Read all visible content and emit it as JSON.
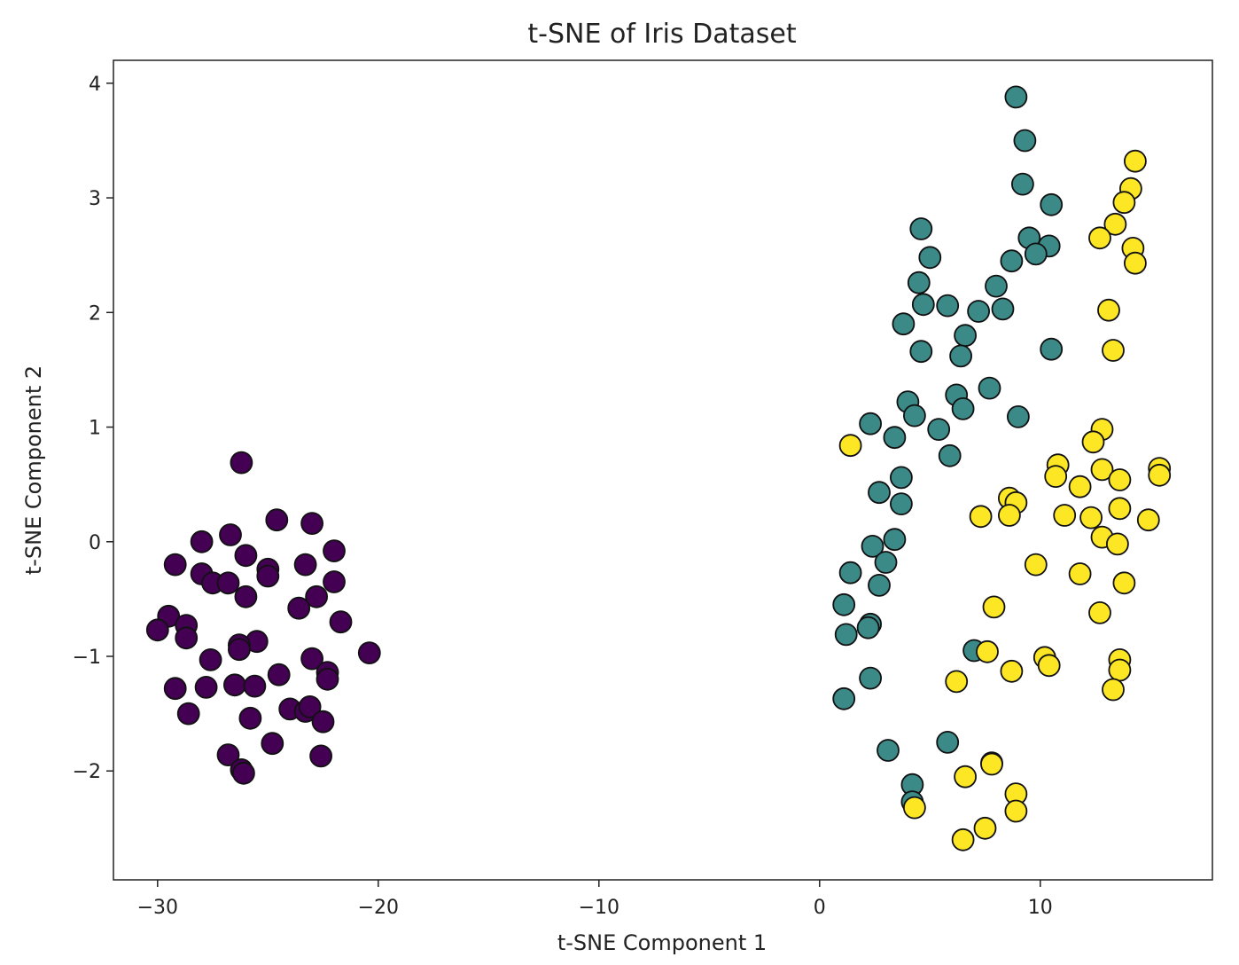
{
  "chart_data": {
    "type": "scatter",
    "title": "t-SNE of Iris Dataset",
    "xlabel": "t-SNE Component 1",
    "ylabel": "t-SNE Component 2",
    "xlim": [
      -32.0,
      17.8
    ],
    "ylim": [
      -2.95,
      4.2
    ],
    "xticks": [
      -30,
      -20,
      -10,
      0,
      10
    ],
    "xtick_labels": [
      "−30",
      "−20",
      "−10",
      "0",
      "10"
    ],
    "yticks": [
      -2,
      -1,
      0,
      1,
      2,
      3,
      4
    ],
    "ytick_labels": [
      "−2",
      "−1",
      "0",
      "1",
      "2",
      "3",
      "4"
    ],
    "grid": false,
    "legend": "none",
    "series": [
      {
        "color": "#440154",
        "points": [
          [
            -26.2,
            0.69
          ],
          [
            -24.6,
            0.19
          ],
          [
            -23.0,
            0.16
          ],
          [
            -28.0,
            0.0
          ],
          [
            -26.7,
            0.06
          ],
          [
            -26.0,
            -0.12
          ],
          [
            -22.0,
            -0.08
          ],
          [
            -29.2,
            -0.2
          ],
          [
            -23.3,
            -0.2
          ],
          [
            -25.0,
            -0.24
          ],
          [
            -28.0,
            -0.28
          ],
          [
            -27.5,
            -0.36
          ],
          [
            -26.8,
            -0.36
          ],
          [
            -25.0,
            -0.3
          ],
          [
            -22.0,
            -0.35
          ],
          [
            -22.8,
            -0.48
          ],
          [
            -26.0,
            -0.48
          ],
          [
            -23.6,
            -0.58
          ],
          [
            -29.5,
            -0.65
          ],
          [
            -28.7,
            -0.73
          ],
          [
            -30.0,
            -0.77
          ],
          [
            -21.7,
            -0.7
          ],
          [
            -28.7,
            -0.84
          ],
          [
            -25.5,
            -0.87
          ],
          [
            -26.3,
            -0.9
          ],
          [
            -26.3,
            -0.94
          ],
          [
            -20.4,
            -0.97
          ],
          [
            -27.6,
            -1.03
          ],
          [
            -23.0,
            -1.02
          ],
          [
            -24.5,
            -1.16
          ],
          [
            -22.3,
            -1.14
          ],
          [
            -22.3,
            -1.2
          ],
          [
            -29.2,
            -1.28
          ],
          [
            -27.8,
            -1.27
          ],
          [
            -26.5,
            -1.25
          ],
          [
            -25.6,
            -1.26
          ],
          [
            -24.0,
            -1.46
          ],
          [
            -23.3,
            -1.48
          ],
          [
            -23.1,
            -1.44
          ],
          [
            -28.6,
            -1.5
          ],
          [
            -25.8,
            -1.54
          ],
          [
            -22.5,
            -1.57
          ],
          [
            -24.8,
            -1.76
          ],
          [
            -26.8,
            -1.86
          ],
          [
            -22.6,
            -1.87
          ],
          [
            -26.2,
            -1.99
          ],
          [
            -26.1,
            -2.02
          ]
        ]
      },
      {
        "color": "#3b8a88",
        "points": [
          [
            8.9,
            3.88
          ],
          [
            9.3,
            3.5
          ],
          [
            9.2,
            3.12
          ],
          [
            10.5,
            2.94
          ],
          [
            4.6,
            2.73
          ],
          [
            9.5,
            2.65
          ],
          [
            10.4,
            2.58
          ],
          [
            9.8,
            2.51
          ],
          [
            5.0,
            2.48
          ],
          [
            8.7,
            2.45
          ],
          [
            4.5,
            2.26
          ],
          [
            8.0,
            2.23
          ],
          [
            4.7,
            2.07
          ],
          [
            5.8,
            2.06
          ],
          [
            7.2,
            2.01
          ],
          [
            8.3,
            2.03
          ],
          [
            3.8,
            1.9
          ],
          [
            6.6,
            1.8
          ],
          [
            4.6,
            1.66
          ],
          [
            6.4,
            1.62
          ],
          [
            10.5,
            1.68
          ],
          [
            7.7,
            1.34
          ],
          [
            6.2,
            1.28
          ],
          [
            4.0,
            1.22
          ],
          [
            9.0,
            1.09
          ],
          [
            4.3,
            1.1
          ],
          [
            6.5,
            1.16
          ],
          [
            2.3,
            1.03
          ],
          [
            5.4,
            0.98
          ],
          [
            3.4,
            0.91
          ],
          [
            5.9,
            0.75
          ],
          [
            3.7,
            0.56
          ],
          [
            2.7,
            0.43
          ],
          [
            3.7,
            0.33
          ],
          [
            3.4,
            0.02
          ],
          [
            2.4,
            -0.04
          ],
          [
            3.0,
            -0.18
          ],
          [
            1.4,
            -0.27
          ],
          [
            2.7,
            -0.38
          ],
          [
            1.1,
            -0.55
          ],
          [
            2.3,
            -0.72
          ],
          [
            2.2,
            -0.75
          ],
          [
            1.2,
            -0.81
          ],
          [
            7.0,
            -0.95
          ],
          [
            2.3,
            -1.19
          ],
          [
            1.1,
            -1.37
          ],
          [
            5.8,
            -1.75
          ],
          [
            3.1,
            -1.82
          ],
          [
            4.2,
            -2.12
          ],
          [
            4.2,
            -2.27
          ]
        ]
      },
      {
        "color": "#fde725",
        "points": [
          [
            14.3,
            3.32
          ],
          [
            14.1,
            3.08
          ],
          [
            13.8,
            2.96
          ],
          [
            13.4,
            2.77
          ],
          [
            12.7,
            2.65
          ],
          [
            14.2,
            2.56
          ],
          [
            14.3,
            2.43
          ],
          [
            13.1,
            2.02
          ],
          [
            13.3,
            1.67
          ],
          [
            12.8,
            0.98
          ],
          [
            12.4,
            0.87
          ],
          [
            1.4,
            0.84
          ],
          [
            10.8,
            0.67
          ],
          [
            15.4,
            0.64
          ],
          [
            12.8,
            0.63
          ],
          [
            10.7,
            0.57
          ],
          [
            15.4,
            0.58
          ],
          [
            13.6,
            0.54
          ],
          [
            11.8,
            0.48
          ],
          [
            8.6,
            0.38
          ],
          [
            8.9,
            0.34
          ],
          [
            13.6,
            0.29
          ],
          [
            11.1,
            0.23
          ],
          [
            12.3,
            0.21
          ],
          [
            7.3,
            0.22
          ],
          [
            8.6,
            0.23
          ],
          [
            14.9,
            0.19
          ],
          [
            12.8,
            0.04
          ],
          [
            13.5,
            -0.02
          ],
          [
            9.8,
            -0.2
          ],
          [
            11.8,
            -0.28
          ],
          [
            13.8,
            -0.36
          ],
          [
            7.9,
            -0.57
          ],
          [
            12.7,
            -0.62
          ],
          [
            7.6,
            -0.96
          ],
          [
            10.2,
            -1.01
          ],
          [
            13.6,
            -1.03
          ],
          [
            10.4,
            -1.08
          ],
          [
            13.6,
            -1.12
          ],
          [
            8.7,
            -1.13
          ],
          [
            6.2,
            -1.22
          ],
          [
            13.3,
            -1.29
          ],
          [
            7.8,
            -1.93
          ],
          [
            7.8,
            -1.94
          ],
          [
            6.6,
            -2.05
          ],
          [
            8.9,
            -2.2
          ],
          [
            4.3,
            -2.32
          ],
          [
            8.9,
            -2.35
          ],
          [
            7.5,
            -2.5
          ],
          [
            6.5,
            -2.6
          ]
        ]
      }
    ]
  }
}
